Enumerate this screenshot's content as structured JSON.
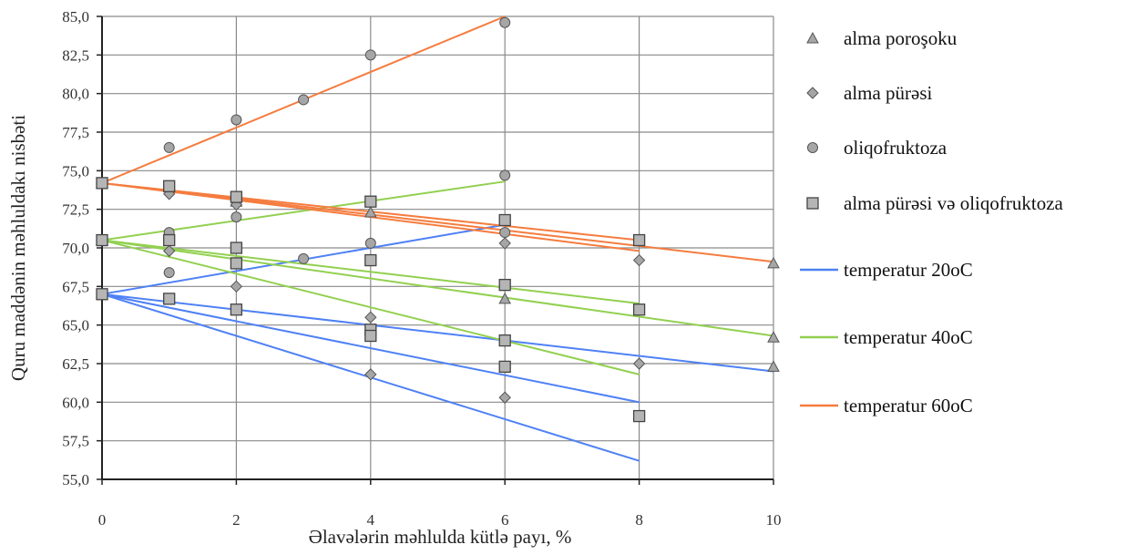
{
  "chart_data": {
    "type": "scatter",
    "xlabel": "Əlavələrin məhlulda kütlə payı, %",
    "ylabel": "Quru maddənin məhluldakı nisbəti",
    "xlim": [
      0,
      10
    ],
    "ylim": [
      55,
      85
    ],
    "x_ticks": [
      "0",
      "2",
      "4",
      "6",
      "8",
      "10"
    ],
    "y_ticks": [
      "55,0",
      "57,5",
      "60,0",
      "62,5",
      "65,0",
      "67,5",
      "70,0",
      "72,5",
      "75,0",
      "77,5",
      "80,0",
      "82,5",
      "85,0"
    ],
    "grid": true,
    "legend_position": "right",
    "series": [
      {
        "name": "alma poroşoku",
        "marker": "triangle",
        "color": "#8c8c8c",
        "x": [
          0,
          0,
          0,
          2,
          2,
          4,
          6,
          10,
          10,
          10
        ],
        "y": [
          67.0,
          70.5,
          74.2,
          69.0,
          73.0,
          72.3,
          66.7,
          69.0,
          64.2,
          62.3
        ]
      },
      {
        "name": "alma pürəsi",
        "marker": "diamond",
        "color": "#8c8c8c",
        "x": [
          0,
          0,
          0,
          1,
          1,
          2,
          2,
          4,
          4,
          6,
          6,
          6,
          8,
          8
        ],
        "y": [
          67.0,
          70.5,
          74.2,
          73.5,
          69.8,
          67.5,
          72.8,
          65.5,
          61.8,
          64.0,
          60.3,
          70.3,
          69.2,
          62.5
        ]
      },
      {
        "name": "oliqofruktoza",
        "marker": "circle",
        "color": "#8c8c8c",
        "x": [
          1,
          1,
          1,
          2,
          2,
          3,
          3,
          4,
          4,
          6,
          6,
          6
        ],
        "y": [
          76.5,
          71.0,
          68.4,
          78.3,
          72.0,
          79.6,
          69.3,
          82.5,
          70.3,
          84.6,
          74.7,
          71.0
        ]
      },
      {
        "name": "alma pürəsi və oliqofruktoza",
        "marker": "square",
        "color": "#8c8c8c",
        "x": [
          0,
          0,
          0,
          1,
          1,
          1,
          2,
          2,
          2,
          2,
          4,
          4,
          4,
          4,
          6,
          6,
          6,
          6,
          8,
          8,
          8
        ],
        "y": [
          74.2,
          70.5,
          67.0,
          74.0,
          70.5,
          66.7,
          73.3,
          70.0,
          69.0,
          66.0,
          73.0,
          69.2,
          64.7,
          64.3,
          71.8,
          67.6,
          64.0,
          62.3,
          70.5,
          66.0,
          59.1
        ]
      }
    ],
    "trendlines": [
      {
        "name": "temperatur 20oC",
        "color": "#4f81f5",
        "segments": [
          {
            "x": [
              0,
              6
            ],
            "y": [
              67.0,
              71.5
            ]
          },
          {
            "x": [
              0,
              10
            ],
            "y": [
              67.0,
              62.0
            ]
          },
          {
            "x": [
              0,
              8
            ],
            "y": [
              67.0,
              60.0
            ]
          },
          {
            "x": [
              0,
              8
            ],
            "y": [
              67.0,
              56.2
            ]
          }
        ]
      },
      {
        "name": "temperatur 40oC",
        "color": "#92d050",
        "segments": [
          {
            "x": [
              0,
              6
            ],
            "y": [
              70.5,
              74.3
            ]
          },
          {
            "x": [
              0,
              10
            ],
            "y": [
              70.5,
              64.3
            ]
          },
          {
            "x": [
              0,
              8
            ],
            "y": [
              70.5,
              66.4
            ]
          },
          {
            "x": [
              0,
              8
            ],
            "y": [
              70.5,
              61.8
            ]
          }
        ]
      },
      {
        "name": "temperatur 60oC",
        "color": "#f57c3f",
        "segments": [
          {
            "x": [
              0,
              6
            ],
            "y": [
              74.2,
              85.0
            ]
          },
          {
            "x": [
              0,
              10
            ],
            "y": [
              74.2,
              69.1
            ]
          },
          {
            "x": [
              0,
              8
            ],
            "y": [
              74.2,
              70.5
            ]
          },
          {
            "x": [
              0,
              8
            ],
            "y": [
              74.2,
              69.8
            ]
          }
        ]
      }
    ]
  },
  "legend": [
    {
      "label": "alma poroşoku",
      "kind": "marker",
      "marker": "triangle",
      "color": "#8c8c8c"
    },
    {
      "label": "alma pürəsi",
      "kind": "marker",
      "marker": "diamond",
      "color": "#8c8c8c"
    },
    {
      "label": "oliqofruktoza",
      "kind": "marker",
      "marker": "circle",
      "color": "#8c8c8c"
    },
    {
      "label": "alma pürəsi və oliqofruktoza",
      "kind": "marker",
      "marker": "square",
      "color": "#8c8c8c"
    },
    {
      "label": "temperatur 20oC",
      "kind": "line",
      "color": "#4f81f5"
    },
    {
      "label": "temperatur 40oC",
      "kind": "line",
      "color": "#92d050"
    },
    {
      "label": "temperatur 60oC",
      "kind": "line",
      "color": "#f57c3f"
    }
  ]
}
